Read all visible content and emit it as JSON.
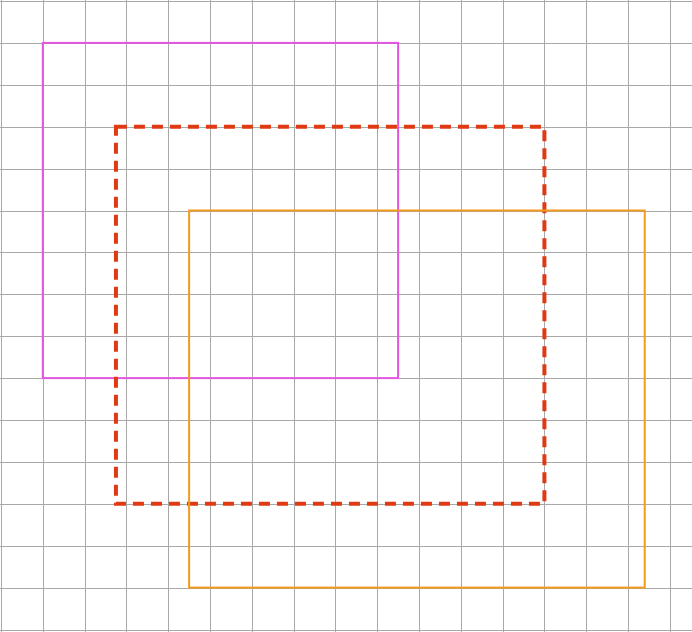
{
  "canvas": {
    "background": "#ffffff"
  },
  "grid": {
    "visible": true,
    "color": "#a8a8a8",
    "columns": 17,
    "rows": 15
  },
  "rectangles": [
    {
      "name": "magenta-rectangle",
      "stroke": "#e455e0",
      "line_style": "solid",
      "grid_span": {
        "col_from": 1,
        "col_to": 9.5,
        "row_from": 1,
        "row_to": 9
      }
    },
    {
      "name": "red-dashed-rectangle",
      "stroke": "#e03a12",
      "line_style": "dashed",
      "grid_span": {
        "col_from": 2.75,
        "col_to": 13,
        "row_from": 3,
        "row_to": 12
      }
    },
    {
      "name": "orange-rectangle",
      "stroke": "#f39a1c",
      "line_style": "solid",
      "grid_span": {
        "col_from": 4.5,
        "col_to": 15.4,
        "row_from": 5,
        "row_to": 14
      }
    }
  ]
}
